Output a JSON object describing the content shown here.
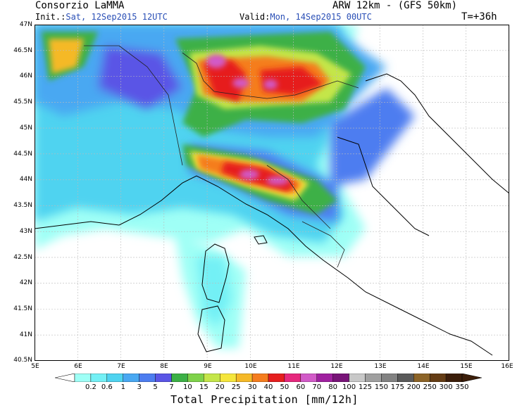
{
  "header": {
    "org": "Consorzio LaMMA",
    "model": "ARW 12km - (GFS 50km)",
    "init_label": "Init.:",
    "init_value": "Sat, 12Sep2015 12UTC",
    "valid_label": "Valid:",
    "valid_value": "Mon, 14Sep2015 00UTC",
    "lead": "T=+36h"
  },
  "axes": {
    "lat_labels": [
      "47N",
      "46.5N",
      "46N",
      "45.5N",
      "45N",
      "44.5N",
      "44N",
      "43.5N",
      "43N",
      "42.5N",
      "42N",
      "41.5N",
      "41N",
      "40.5N"
    ],
    "lon_labels": [
      "5E",
      "6E",
      "7E",
      "8E",
      "9E",
      "10E",
      "11E",
      "12E",
      "13E",
      "14E",
      "15E",
      "16E"
    ]
  },
  "legend": {
    "title": "Total Precipitation [mm/12h]",
    "labels": [
      "0.2",
      "0.6",
      "1",
      "3",
      "5",
      "7",
      "10",
      "15",
      "20",
      "25",
      "30",
      "40",
      "50",
      "60",
      "70",
      "80",
      "100",
      "125",
      "150",
      "175",
      "200",
      "250",
      "300",
      "350"
    ],
    "colors": [
      "#9ffff6",
      "#73f0f5",
      "#4fd3f0",
      "#49a8f2",
      "#4d7df0",
      "#5a55e6",
      "#3cb046",
      "#7ed24a",
      "#c4e64a",
      "#f5e63c",
      "#f5b928",
      "#f57d1e",
      "#e61e1e",
      "#e6287d",
      "#d25ac8",
      "#a020a0",
      "#781478",
      "#c8c8c8",
      "#a0a0a0",
      "#828282",
      "#5a5a5a",
      "#8c6428",
      "#643c14",
      "#3c1e0a"
    ]
  }
}
